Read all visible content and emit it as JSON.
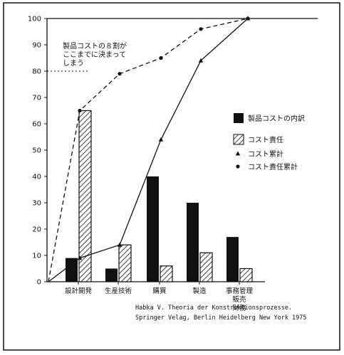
{
  "chart_data": {
    "type": "bar",
    "categories": [
      [
        "設計開発"
      ],
      [
        "生産技術"
      ],
      [
        "購買"
      ],
      [
        "製造"
      ],
      [
        "事務管理",
        "販売",
        "財務"
      ]
    ],
    "ylim": [
      0,
      100
    ],
    "yticks": [
      0,
      10,
      20,
      30,
      40,
      50,
      60,
      70,
      80,
      90,
      100
    ],
    "grid": false,
    "legend_position": "right",
    "series": [
      {
        "name": "製品コストの内訳",
        "kind": "bar",
        "style": "solid",
        "values": [
          9,
          5,
          40,
          30,
          17
        ]
      },
      {
        "name": "コスト責任",
        "kind": "bar",
        "style": "hatched",
        "values": [
          65,
          14,
          6,
          11,
          5
        ]
      },
      {
        "name": "コスト累計",
        "kind": "line",
        "style": "solid",
        "marker": "triangle",
        "x": [
          0,
          1,
          2,
          3,
          4
        ],
        "values": [
          9,
          14,
          54,
          84,
          100
        ],
        "origin": 0
      },
      {
        "name": "コスト責任累計",
        "kind": "line",
        "style": "dashed",
        "marker": "circle",
        "x": [
          0,
          1,
          2,
          3,
          4
        ],
        "values": [
          65,
          79,
          85,
          96,
          100
        ],
        "origin": 0
      }
    ],
    "annotation": {
      "lines": [
        "製品コストの８割が",
        "ここまでに決まって",
        "しまう"
      ],
      "value": 80
    },
    "source": [
      "Habka V. Theoria der Konstruktionsprozesse.",
      "Springer Velag, Berlin Heidelberg New York 1975"
    ]
  }
}
